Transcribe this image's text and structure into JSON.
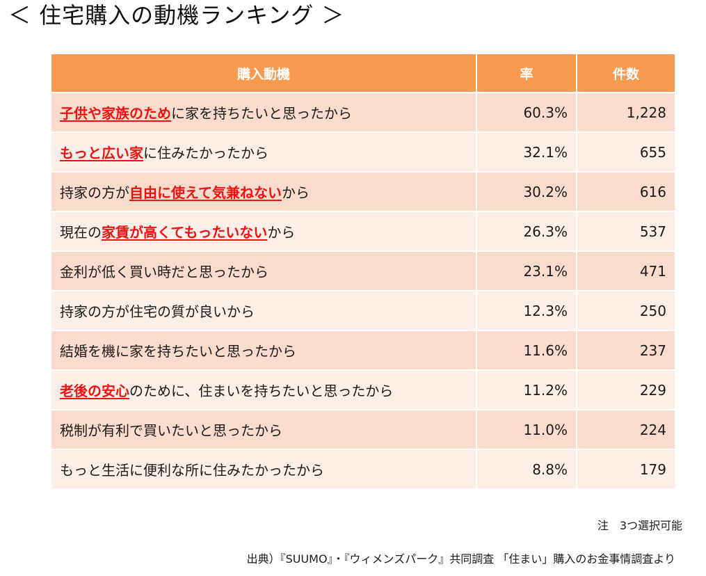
{
  "title": "＜ 住宅購入の動機ランキング ＞",
  "chart_data": {
    "type": "table",
    "columns": [
      "購入動機",
      "率",
      "件数"
    ],
    "rows": [
      {
        "parts": [
          {
            "text": "子供や家族のため",
            "hl": true
          },
          {
            "text": "に家を持ちたいと思ったから",
            "hl": false
          }
        ],
        "rate": "60.3%",
        "count": "1,228"
      },
      {
        "parts": [
          {
            "text": "もっと広い家",
            "hl": true
          },
          {
            "text": "に住みたかったから",
            "hl": false
          }
        ],
        "rate": "32.1%",
        "count": "655"
      },
      {
        "parts": [
          {
            "text": "持家の方が",
            "hl": false
          },
          {
            "text": "自由に使えて気兼ねない",
            "hl": true
          },
          {
            "text": "から",
            "hl": false
          }
        ],
        "rate": "30.2%",
        "count": "616"
      },
      {
        "parts": [
          {
            "text": "現在の",
            "hl": false
          },
          {
            "text": "家賃が高くてもったいない",
            "hl": true
          },
          {
            "text": "から",
            "hl": false
          }
        ],
        "rate": "26.3%",
        "count": "537"
      },
      {
        "parts": [
          {
            "text": "金利が低く買い時だと思ったから",
            "hl": false
          }
        ],
        "rate": "23.1%",
        "count": "471"
      },
      {
        "parts": [
          {
            "text": "持家の方が住宅の質が良いから",
            "hl": false
          }
        ],
        "rate": "12.3%",
        "count": "250"
      },
      {
        "parts": [
          {
            "text": "結婚を機に家を持ちたいと思ったから",
            "hl": false
          }
        ],
        "rate": "11.6%",
        "count": "237"
      },
      {
        "parts": [
          {
            "text": "老後の安心",
            "hl": true
          },
          {
            "text": "のために、住まいを持ちたいと思ったから",
            "hl": false
          }
        ],
        "rate": "11.2%",
        "count": "229"
      },
      {
        "parts": [
          {
            "text": "税制が有利で買いたいと思ったから",
            "hl": false
          }
        ],
        "rate": "11.0%",
        "count": "224"
      },
      {
        "parts": [
          {
            "text": "もっと生活に便利な所に住みたかったから",
            "hl": false
          }
        ],
        "rate": "8.8%",
        "count": "179"
      }
    ]
  },
  "note": "注　3つ選択可能",
  "source": "出典）『SUUMO』・『ウィメンズパーク』共同調査 「住まい」購入のお金事情調査より",
  "colors": {
    "header": "#f59a4e",
    "row_odd": "#fbdbcc",
    "row_even": "#fdeee8",
    "highlight": "#ee1111"
  }
}
